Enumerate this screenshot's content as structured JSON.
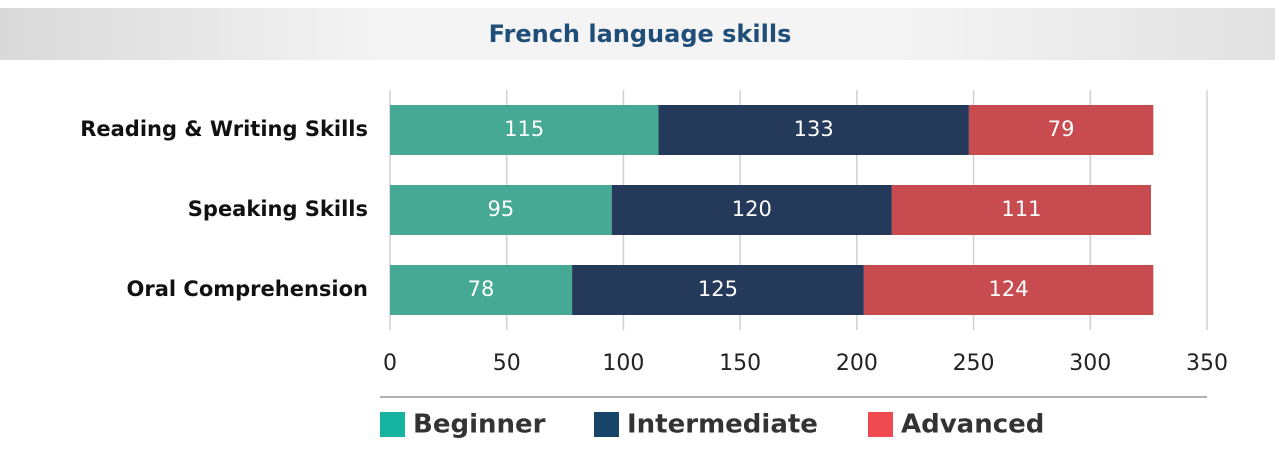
{
  "chart_data": {
    "type": "stacked_barh",
    "title": "French language skills",
    "categories": [
      "Reading & Writing Skills",
      "Speaking Skills",
      "Oral Comprehension"
    ],
    "series": [
      {
        "name": "Beginner",
        "color": "#45a994",
        "legend_color": "#16b3a0",
        "values": [
          115,
          95,
          78
        ]
      },
      {
        "name": "Intermediate",
        "color": "#253a5a",
        "legend_color": "#17456a",
        "values": [
          133,
          120,
          125
        ]
      },
      {
        "name": "Advanced",
        "color": "#c84b4f",
        "legend_color": "#ef4a50",
        "values": [
          79,
          111,
          124
        ]
      }
    ],
    "xlim": [
      0,
      350
    ],
    "xticks": [
      0,
      50,
      100,
      150,
      200,
      250,
      300,
      350
    ],
    "grid": true,
    "legend": "bottom"
  }
}
